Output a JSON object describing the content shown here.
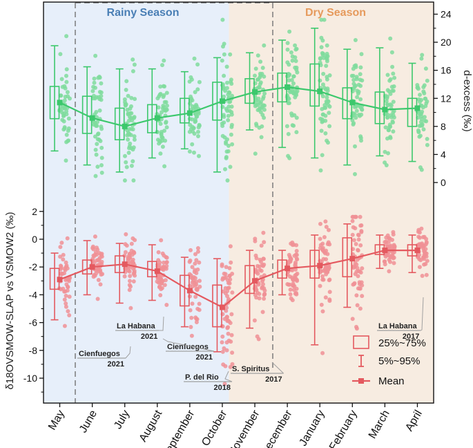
{
  "chart_data": {
    "type": "box-scatter",
    "x_categories": [
      "May",
      "June",
      "July",
      "August",
      "September",
      "October",
      "November",
      "December",
      "January",
      "February",
      "March",
      "April"
    ],
    "seasons": [
      {
        "label": "Rainy Season",
        "start": "May",
        "end": "October"
      },
      {
        "label": "Dry Season",
        "start": "November",
        "end": "April"
      }
    ],
    "top_panel": {
      "ylabel": "d-excess (‰)",
      "ylim": [
        -2,
        25.5
      ],
      "yticks": [
        0,
        4,
        8,
        12,
        16,
        20,
        24
      ],
      "mean": [
        11.4,
        9.2,
        8.0,
        9.2,
        9.9,
        11.6,
        12.9,
        13.6,
        13.0,
        11.4,
        10.4,
        10.6
      ],
      "q1": [
        9.1,
        7.0,
        6.1,
        7.1,
        8.5,
        8.9,
        11.3,
        11.5,
        10.9,
        9.1,
        8.4,
        8.0
      ],
      "q3": [
        13.7,
        12.3,
        10.6,
        11.1,
        12.0,
        14.3,
        14.8,
        15.6,
        16.9,
        13.5,
        12.9,
        12.0
      ],
      "p5": [
        4.5,
        2.5,
        1.5,
        3.5,
        4.8,
        1.5,
        7.5,
        5.0,
        3.5,
        2.5,
        3.8,
        3.0
      ],
      "p95": [
        19.5,
        16.5,
        16.2,
        16.2,
        15.8,
        17.8,
        18.5,
        20.3,
        22.0,
        19.0,
        19.2,
        17.0
      ],
      "point_counts": [
        46,
        50,
        58,
        54,
        50,
        62,
        56,
        62,
        62,
        60,
        54,
        52
      ],
      "color": "#3cc86c",
      "point_color": "#7fdc9c"
    },
    "bottom_panel": {
      "ylabel": "δ18OVSMOW-SLAP vs VSMOW2 (‰)",
      "ylim": [
        -11.5,
        2.8
      ],
      "yticks": [
        2,
        0,
        -2,
        -4,
        -6,
        -8,
        -10
      ],
      "mean": [
        -2.9,
        -2.0,
        -1.8,
        -2.3,
        -3.7,
        -4.9,
        -3.0,
        -2.1,
        -1.9,
        -1.4,
        -0.8,
        -0.8
      ],
      "q1": [
        -3.6,
        -2.5,
        -2.4,
        -2.7,
        -4.8,
        -6.3,
        -3.9,
        -2.8,
        -2.8,
        -2.7,
        -1.1,
        -1.2
      ],
      "q3": [
        -2.1,
        -1.5,
        -1.2,
        -1.6,
        -2.6,
        -3.3,
        -1.9,
        -1.5,
        -0.8,
        0.1,
        -0.4,
        -0.4
      ],
      "p5": [
        -5.8,
        -4.0,
        -4.6,
        -4.4,
        -6.3,
        -8.1,
        -6.4,
        -4.0,
        -7.6,
        -4.9,
        -2.1,
        -2.4
      ],
      "p95": [
        -1.0,
        -0.1,
        -0.3,
        -0.4,
        -1.3,
        -1.4,
        -0.8,
        -0.8,
        0.3,
        1.1,
        0.3,
        0.3
      ],
      "point_counts": [
        46,
        50,
        58,
        54,
        50,
        62,
        56,
        62,
        62,
        60,
        54,
        52
      ],
      "color": "#e4595f",
      "point_color": "#f09095"
    },
    "annotations": [
      {
        "city": "Cienfuegos",
        "year": "2021",
        "month_index": 2,
        "value": -7.7
      },
      {
        "city": "La Habana",
        "year": "2021",
        "month_index": 3,
        "value": -5.5
      },
      {
        "city": "Cienfuegos",
        "year": "2021",
        "month_index": 3,
        "value": -7.2
      },
      {
        "city": "P. del Rio",
        "year": "2018",
        "month_index": 5,
        "value": -9.5
      },
      {
        "city": "S. Spiritus",
        "year": "2017",
        "month_index": 5,
        "value": -8.7
      },
      {
        "city": "La Habana",
        "year": "2017",
        "month_index": 11,
        "value": -4.2
      }
    ],
    "legend": {
      "position": "bottom-right",
      "items": [
        {
          "symbol": "box",
          "label": "25%~75%"
        },
        {
          "symbol": "whisker",
          "label": "5%~95%"
        },
        {
          "symbol": "line-square",
          "label": "Mean"
        }
      ]
    },
    "colors": {
      "rainy_bg": "#e7effa",
      "dry_bg": "#f7ece1",
      "rainy_text": "#4a7fb5",
      "dry_text": "#e69a5c",
      "annotation_line": "#a0a0a0"
    }
  }
}
